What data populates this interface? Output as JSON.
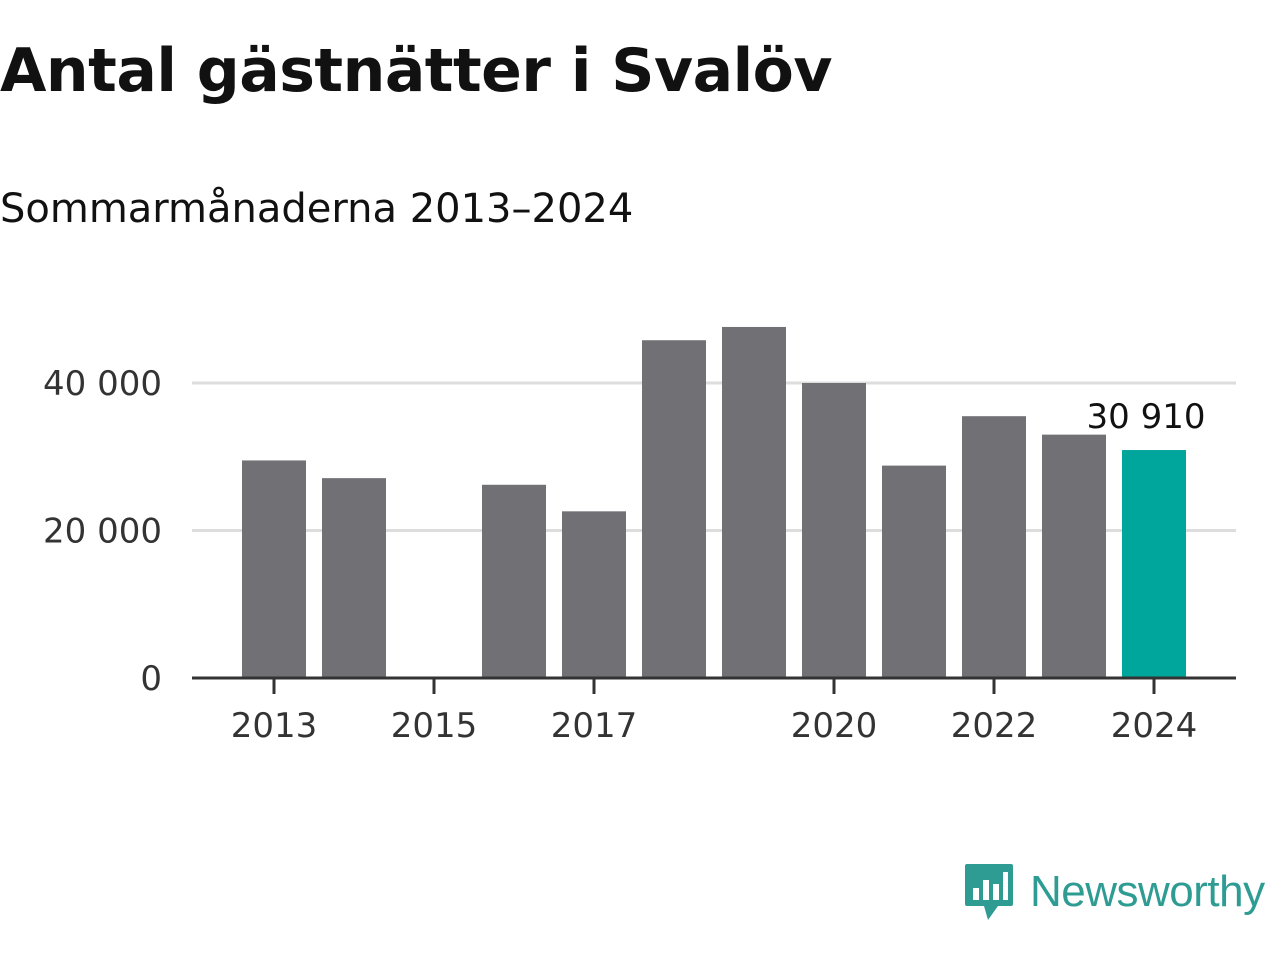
{
  "title": "Antal gästnätter i Svalöv",
  "subtitle": "Sommarmånaderna 2013–2024",
  "colors": {
    "bar": "#717075",
    "highlight": "#00a59c",
    "grid": "#dddddd",
    "axis": "#333333",
    "logo": "#2f9c93"
  },
  "brand": {
    "name": "Newsworthy",
    "icon": "bar-chart-speech-bubble-icon"
  },
  "chart_data": {
    "type": "bar",
    "title": "Antal gästnätter i Svalöv",
    "subtitle": "Sommarmånaderna 2013–2024",
    "xlabel": "",
    "ylabel": "",
    "categories": [
      "2013",
      "2014",
      "2015",
      "2016",
      "2017",
      "2018",
      "2019",
      "2020",
      "2021",
      "2022",
      "2023",
      "2024"
    ],
    "values": [
      29500,
      27100,
      null,
      26200,
      22600,
      45800,
      47600,
      40000,
      28800,
      35500,
      33000,
      30910
    ],
    "ylim": [
      0,
      50000
    ],
    "yticks": [
      0,
      20000,
      40000
    ],
    "ytick_labels": [
      "0",
      "20 000",
      "40 000"
    ],
    "xtick_labels": [
      "2013",
      "2015",
      "2017",
      "2020",
      "2022",
      "2024"
    ],
    "highlight_category": "2024",
    "data_label": "30 910",
    "grid": true,
    "legend": "none"
  }
}
